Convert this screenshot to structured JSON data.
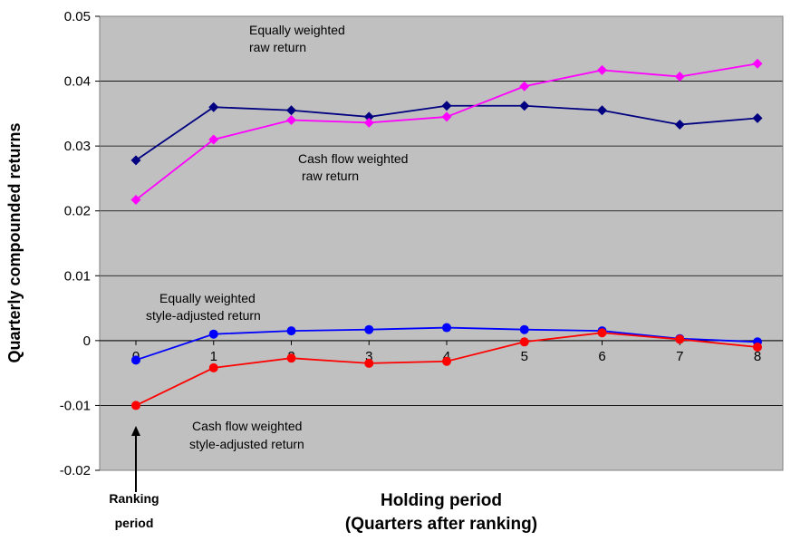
{
  "chart_data": {
    "type": "line",
    "x": [
      0,
      1,
      2,
      3,
      4,
      5,
      6,
      7,
      8
    ],
    "ylim": [
      -0.02,
      0.05
    ],
    "y_ticks": [
      "-0.02",
      "-0.01",
      "0",
      "0.01",
      "0.02",
      "0.03",
      "0.04",
      "0.05"
    ],
    "x_ticks": [
      "0",
      "1",
      "2",
      "3",
      "4",
      "5",
      "6",
      "7",
      "8"
    ],
    "ylabel": "Quarterly compounded returns",
    "xlabel_line1": "Holding period",
    "xlabel_line2": "(Quarters after ranking)",
    "grid": "horizontal",
    "background": "#c0c0c0",
    "series": [
      {
        "name": "Equally weighted raw return",
        "color": "#000080",
        "marker": "diamond",
        "values": [
          0.0278,
          0.036,
          0.0355,
          0.0345,
          0.0362,
          0.0362,
          0.0355,
          0.0333,
          0.0343
        ]
      },
      {
        "name": "Cash flow weighted raw return",
        "color": "#ff00ff",
        "marker": "diamond",
        "values": [
          0.0217,
          0.031,
          0.034,
          0.0336,
          0.0345,
          0.0392,
          0.0417,
          0.0407,
          0.0427
        ]
      },
      {
        "name": "Equally weighted style-adjusted return",
        "color": "#0000ff",
        "marker": "circle",
        "values": [
          -0.003,
          0.001,
          0.0015,
          0.0017,
          0.002,
          0.0017,
          0.0015,
          0.0003,
          -0.0002
        ]
      },
      {
        "name": "Cash flow weighted style-adjusted return",
        "color": "#ff0000",
        "marker": "circle",
        "values": [
          -0.01,
          -0.0042,
          -0.0027,
          -0.0035,
          -0.0032,
          -0.0002,
          0.0012,
          0.0002,
          -0.001
        ]
      }
    ],
    "annotations": {
      "eq_raw_line1": "Equally weighted",
      "eq_raw_line2": "raw return",
      "cf_raw_line1": "Cash flow weighted",
      "cf_raw_line2": "raw return",
      "eq_style_line1": "Equally weighted",
      "eq_style_line2": "style-adjusted return",
      "cf_style_line1": "Cash flow weighted",
      "cf_style_line2": "style-adjusted return",
      "ranking_line1": "Ranking",
      "ranking_line2": "period"
    }
  }
}
